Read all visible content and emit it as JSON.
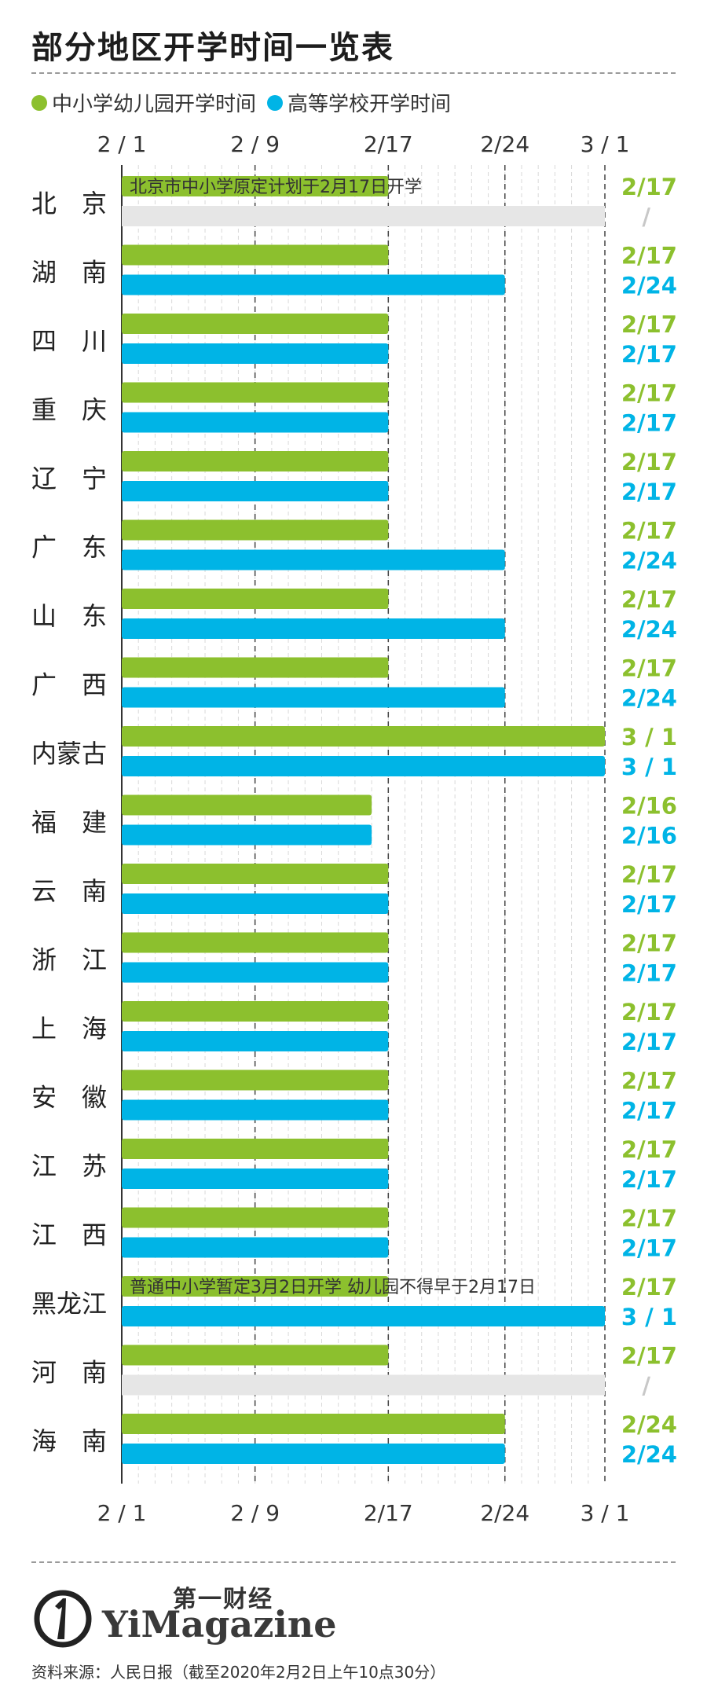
{
  "title": "部分地区开学时间一览表",
  "legend": {
    "primary": "中小学幼儿园开学时间",
    "higher": "高等学校开学时间"
  },
  "colors": {
    "primary": "#8cc02e",
    "higher": "#00b4e6",
    "empty": "#e6e6e6",
    "na": "#c8c8c8"
  },
  "chart_data": {
    "type": "bar",
    "orientation": "horizontal",
    "x_axis": {
      "ticks": [
        "2 / 1",
        "2 / 9",
        "2/17",
        "2/24",
        "3 / 1"
      ],
      "range": [
        "2/1",
        "3/1"
      ]
    },
    "series": [
      {
        "name": "中小学幼儿园开学时间",
        "color": "#8cc02e"
      },
      {
        "name": "高等学校开学时间",
        "color": "#00b4e6"
      }
    ],
    "rows": [
      {
        "region": "北　京",
        "primary": "2/17",
        "primary_label": "2/17",
        "higher": null,
        "higher_label": "/",
        "note": "北京市中小学原定计划于2月17日开学"
      },
      {
        "region": "湖　南",
        "primary": "2/17",
        "primary_label": "2/17",
        "higher": "2/24",
        "higher_label": "2/24"
      },
      {
        "region": "四　川",
        "primary": "2/17",
        "primary_label": "2/17",
        "higher": "2/17",
        "higher_label": "2/17"
      },
      {
        "region": "重　庆",
        "primary": "2/17",
        "primary_label": "2/17",
        "higher": "2/17",
        "higher_label": "2/17"
      },
      {
        "region": "辽　宁",
        "primary": "2/17",
        "primary_label": "2/17",
        "higher": "2/17",
        "higher_label": "2/17"
      },
      {
        "region": "广　东",
        "primary": "2/17",
        "primary_label": "2/17",
        "higher": "2/24",
        "higher_label": "2/24"
      },
      {
        "region": "山　东",
        "primary": "2/17",
        "primary_label": "2/17",
        "higher": "2/24",
        "higher_label": "2/24"
      },
      {
        "region": "广　西",
        "primary": "2/17",
        "primary_label": "2/17",
        "higher": "2/24",
        "higher_label": "2/24"
      },
      {
        "region": "内蒙古",
        "primary": "3/1",
        "primary_label": "3 / 1",
        "higher": "3/1",
        "higher_label": "3 / 1"
      },
      {
        "region": "福　建",
        "primary": "2/16",
        "primary_label": "2/16",
        "higher": "2/16",
        "higher_label": "2/16"
      },
      {
        "region": "云　南",
        "primary": "2/17",
        "primary_label": "2/17",
        "higher": "2/17",
        "higher_label": "2/17"
      },
      {
        "region": "浙　江",
        "primary": "2/17",
        "primary_label": "2/17",
        "higher": "2/17",
        "higher_label": "2/17"
      },
      {
        "region": "上　海",
        "primary": "2/17",
        "primary_label": "2/17",
        "higher": "2/17",
        "higher_label": "2/17"
      },
      {
        "region": "安　徽",
        "primary": "2/17",
        "primary_label": "2/17",
        "higher": "2/17",
        "higher_label": "2/17"
      },
      {
        "region": "江　苏",
        "primary": "2/17",
        "primary_label": "2/17",
        "higher": "2/17",
        "higher_label": "2/17"
      },
      {
        "region": "江　西",
        "primary": "2/17",
        "primary_label": "2/17",
        "higher": "2/17",
        "higher_label": "2/17"
      },
      {
        "region": "黑龙江",
        "primary": null,
        "primary_label": "2/17",
        "higher": "3/1",
        "higher_label": "3 / 1",
        "note": "普通中小学暂定3月2日开学 幼儿园不得早于2月17日"
      },
      {
        "region": "河　南",
        "primary": "2/17",
        "primary_label": "2/17",
        "higher": null,
        "higher_label": "/"
      },
      {
        "region": "海　南",
        "primary": "2/24",
        "primary_label": "2/24",
        "higher": "2/24",
        "higher_label": "2/24"
      }
    ]
  },
  "footer": {
    "brand_cn": "第一财经",
    "brand_en": "YiMagazine",
    "source": "资料来源：人民日报（截至2020年2月2日上午10点30分）"
  }
}
